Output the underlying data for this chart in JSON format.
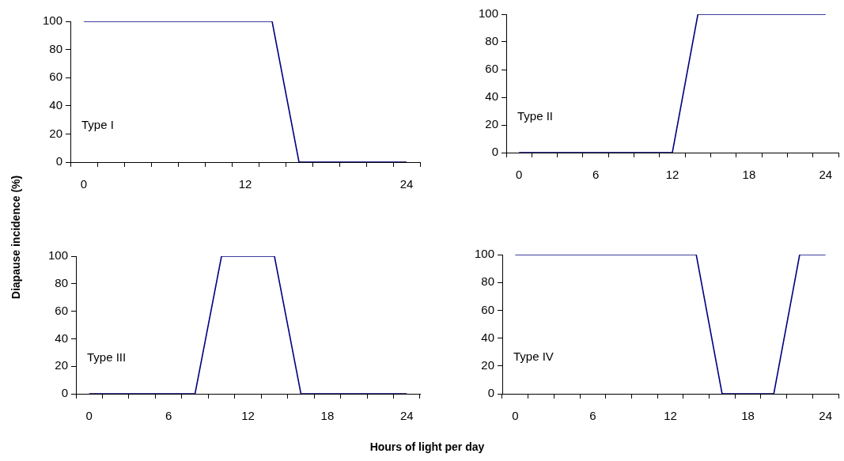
{
  "chart_data": [
    {
      "type": "line",
      "ylabel": "Diapause incidence (%)",
      "categories": [
        "0",
        null,
        null,
        null,
        null,
        null,
        "12",
        null,
        null,
        null,
        null,
        null,
        "24"
      ],
      "values": [
        100,
        100,
        100,
        100,
        100,
        100,
        100,
        100,
        0,
        0,
        0,
        0,
        0
      ],
      "color": "#000080",
      "ylim": [
        0,
        100
      ],
      "yticks": [
        0,
        20,
        40,
        60,
        80,
        100
      ],
      "marker": "none",
      "annotations": [
        "Type I"
      ]
    },
    {
      "type": "line",
      "categories": [
        "0",
        null,
        null,
        "6",
        null,
        null,
        "12",
        null,
        null,
        "18",
        null,
        null,
        "24"
      ],
      "values": [
        0,
        0,
        0,
        0,
        0,
        0,
        0,
        100,
        100,
        100,
        100,
        100,
        100
      ],
      "color": "#000080",
      "ylim": [
        0,
        100
      ],
      "yticks": [
        0,
        20,
        40,
        60,
        80,
        100
      ],
      "marker": "none",
      "annotations": [
        "Type II"
      ]
    },
    {
      "type": "line",
      "xlabel": "Hours of light per day",
      "categories": [
        "0",
        null,
        null,
        "6",
        null,
        null,
        "12",
        null,
        null,
        "18",
        null,
        null,
        "24"
      ],
      "values": [
        0,
        0,
        0,
        0,
        0,
        100,
        100,
        100,
        0,
        0,
        0,
        0,
        0
      ],
      "color": "#000080",
      "ylim": [
        0,
        100
      ],
      "yticks": [
        0,
        20,
        40,
        60,
        80,
        100
      ],
      "marker": "none",
      "annotations": [
        "Type III"
      ]
    },
    {
      "type": "line",
      "categories": [
        "0",
        null,
        null,
        "6",
        null,
        null,
        "12",
        null,
        null,
        "18",
        null,
        null,
        "24"
      ],
      "values": [
        100,
        100,
        100,
        100,
        100,
        100,
        100,
        100,
        0,
        0,
        0,
        100,
        100
      ],
      "color": "#000080",
      "ylim": [
        0,
        100
      ],
      "yticks": [
        0,
        20,
        40,
        60,
        80,
        100
      ],
      "marker": "none",
      "annotations": [
        "Type IV"
      ]
    }
  ]
}
